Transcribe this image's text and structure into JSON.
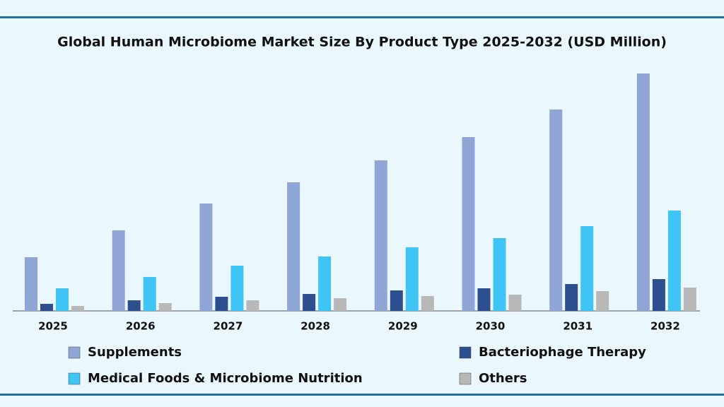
{
  "chart_data": {
    "type": "bar",
    "title": "Global Human Microbiome Market Size By Product Type 2025-2032 (USD Million)",
    "categories": [
      "2025",
      "2026",
      "2027",
      "2028",
      "2029",
      "2030",
      "2031",
      "2032"
    ],
    "series": [
      {
        "name": "Supplements",
        "color": "#8fa5d6",
        "values": [
          76,
          114,
          152,
          182,
          213,
          246,
          285,
          336
        ]
      },
      {
        "name": "Bacteriophage Therapy",
        "color": "#2e4f8f",
        "values": [
          10,
          15,
          20,
          24,
          29,
          32,
          38,
          45
        ]
      },
      {
        "name": "Medical Foods & Microbiome Nutrition",
        "color": "#3ec5f5",
        "values": [
          32,
          48,
          64,
          77,
          90,
          103,
          120,
          142
        ]
      },
      {
        "name": "Others",
        "color": "#b8b8b8",
        "values": [
          7,
          11,
          15,
          18,
          21,
          23,
          28,
          33
        ]
      }
    ]
  }
}
